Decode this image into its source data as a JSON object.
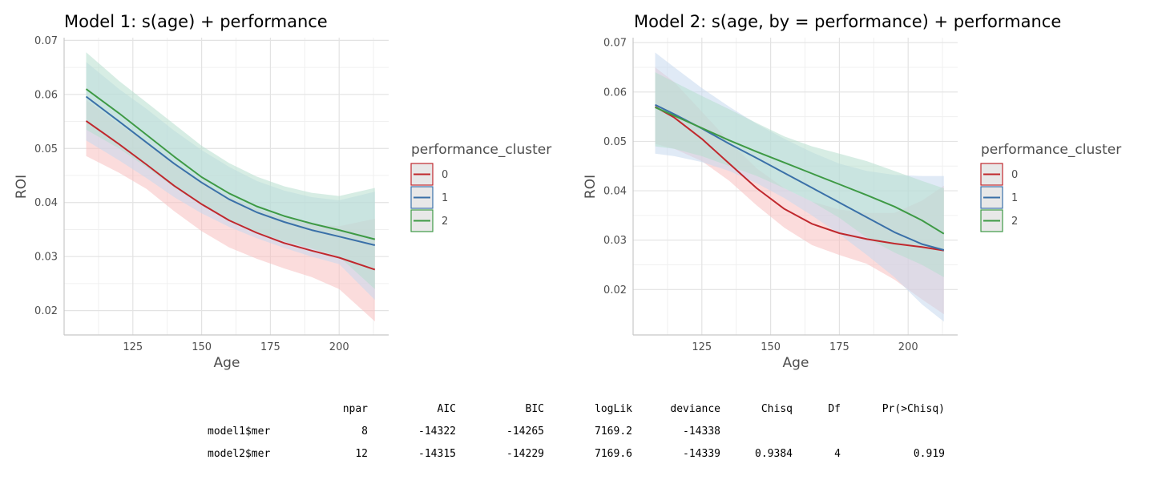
{
  "chart_data": [
    {
      "type": "line",
      "title": "Model 1: s(age) + performance",
      "xlabel": "Age",
      "ylabel": "ROI",
      "xlim": [
        100,
        218
      ],
      "ylim": [
        0.0155,
        0.0705
      ],
      "xticks": [
        125,
        150,
        175,
        200
      ],
      "xtick_labels": [
        "125",
        "150",
        "175",
        "200"
      ],
      "yticks": [
        0.02,
        0.03,
        0.04,
        0.05,
        0.06,
        0.07
      ],
      "ytick_labels": [
        "0.02",
        "0.03",
        "0.04",
        "0.05",
        "0.06",
        "0.07"
      ],
      "grid": true,
      "legend": {
        "title": "performance_cluster",
        "position": "right"
      },
      "series": [
        {
          "name": "0",
          "color": "#c0282d",
          "fill": "#f8c0c0",
          "x": [
            108,
            120,
            130,
            140,
            150,
            160,
            170,
            180,
            190,
            200,
            213
          ],
          "y": [
            0.0551,
            0.0508,
            0.047,
            0.0431,
            0.0397,
            0.0367,
            0.0344,
            0.0325,
            0.0311,
            0.0298,
            0.0276
          ],
          "lower": [
            0.0486,
            0.0455,
            0.0425,
            0.0384,
            0.0347,
            0.0317,
            0.0296,
            0.0278,
            0.0262,
            0.024,
            0.018
          ],
          "upper": [
            0.059,
            0.0545,
            0.051,
            0.0474,
            0.044,
            0.041,
            0.0388,
            0.0372,
            0.036,
            0.0356,
            0.037
          ]
        },
        {
          "name": "1",
          "color": "#3a70a8",
          "fill": "#c6d9ee",
          "x": [
            108,
            120,
            130,
            140,
            150,
            160,
            170,
            180,
            190,
            200,
            213
          ],
          "y": [
            0.0596,
            0.055,
            0.0511,
            0.0472,
            0.0437,
            0.0406,
            0.0382,
            0.0364,
            0.0349,
            0.0337,
            0.0321
          ],
          "lower": [
            0.0515,
            0.0478,
            0.0445,
            0.041,
            0.038,
            0.0355,
            0.0334,
            0.0316,
            0.03,
            0.0286,
            0.022
          ],
          "upper": [
            0.066,
            0.061,
            0.0573,
            0.0533,
            0.0497,
            0.0466,
            0.044,
            0.0422,
            0.041,
            0.0404,
            0.042
          ]
        },
        {
          "name": "2",
          "color": "#3e9a45",
          "fill": "#b7decd",
          "x": [
            108,
            120,
            130,
            140,
            150,
            160,
            170,
            180,
            190,
            200,
            213
          ],
          "y": [
            0.061,
            0.0565,
            0.0525,
            0.0485,
            0.0447,
            0.0417,
            0.0393,
            0.0375,
            0.0361,
            0.0349,
            0.0332
          ],
          "lower": [
            0.0535,
            0.05,
            0.0465,
            0.0428,
            0.0395,
            0.0367,
            0.0345,
            0.0328,
            0.0315,
            0.03,
            0.024
          ],
          "upper": [
            0.0678,
            0.0625,
            0.0585,
            0.0545,
            0.0505,
            0.0473,
            0.0448,
            0.043,
            0.0418,
            0.0412,
            0.0427
          ]
        }
      ]
    },
    {
      "type": "line",
      "title": "Model 2: s(age, by = performance) + performance",
      "xlabel": "Age",
      "ylabel": "ROI",
      "xlim": [
        100,
        218
      ],
      "ylim": [
        0.0108,
        0.071
      ],
      "xticks": [
        125,
        150,
        175,
        200
      ],
      "xtick_labels": [
        "125",
        "150",
        "175",
        "200"
      ],
      "yticks": [
        0.02,
        0.03,
        0.04,
        0.05,
        0.06,
        0.07
      ],
      "ytick_labels": [
        "0.02",
        "0.03",
        "0.04",
        "0.05",
        "0.06",
        "0.07"
      ],
      "grid": true,
      "legend": {
        "title": "performance_cluster",
        "position": "right"
      },
      "series": [
        {
          "name": "0",
          "color": "#c0282d",
          "fill": "#f8c0c0",
          "x": [
            108,
            115,
            125,
            135,
            145,
            155,
            165,
            175,
            185,
            195,
            205,
            213
          ],
          "y": [
            0.057,
            0.0548,
            0.0505,
            0.0455,
            0.0405,
            0.0363,
            0.0333,
            0.0314,
            0.0302,
            0.0293,
            0.0286,
            0.0279
          ],
          "lower": [
            0.0495,
            0.0485,
            0.046,
            0.042,
            0.037,
            0.0325,
            0.029,
            0.027,
            0.0252,
            0.022,
            0.018,
            0.015
          ],
          "upper": [
            0.065,
            0.062,
            0.056,
            0.05,
            0.0445,
            0.0405,
            0.0378,
            0.0362,
            0.0355,
            0.0355,
            0.038,
            0.041
          ]
        },
        {
          "name": "1",
          "color": "#3a70a8",
          "fill": "#c6d9ee",
          "x": [
            108,
            115,
            125,
            135,
            145,
            155,
            165,
            175,
            185,
            195,
            205,
            213
          ],
          "y": [
            0.0574,
            0.0555,
            0.0526,
            0.0495,
            0.0466,
            0.0436,
            0.0406,
            0.0376,
            0.0346,
            0.0316,
            0.0292,
            0.028
          ],
          "lower": [
            0.0475,
            0.047,
            0.0458,
            0.044,
            0.0415,
            0.0385,
            0.035,
            0.0312,
            0.027,
            0.0225,
            0.017,
            0.0135
          ],
          "upper": [
            0.068,
            0.065,
            0.0608,
            0.057,
            0.0535,
            0.0505,
            0.0478,
            0.0455,
            0.044,
            0.0432,
            0.043,
            0.043
          ]
        },
        {
          "name": "2",
          "color": "#3e9a45",
          "fill": "#b7decd",
          "x": [
            108,
            115,
            125,
            135,
            145,
            155,
            165,
            175,
            185,
            195,
            205,
            213
          ],
          "y": [
            0.0569,
            0.0552,
            0.0527,
            0.0502,
            0.0479,
            0.0457,
            0.0435,
            0.0413,
            0.0391,
            0.0368,
            0.034,
            0.0313
          ],
          "lower": [
            0.049,
            0.0485,
            0.047,
            0.045,
            0.043,
            0.0405,
            0.0378,
            0.0345,
            0.0305,
            0.0275,
            0.025,
            0.0225
          ],
          "upper": [
            0.064,
            0.062,
            0.0592,
            0.0565,
            0.0537,
            0.051,
            0.049,
            0.0475,
            0.046,
            0.044,
            0.042,
            0.0405
          ]
        }
      ]
    }
  ],
  "anova_table": {
    "columns": [
      "npar",
      "AIC",
      "BIC",
      "logLik",
      "deviance",
      "Chisq",
      "Df",
      "Pr(>Chisq)"
    ],
    "rows": [
      {
        "label": "model1$mer",
        "values": [
          "8",
          "-14322",
          "-14265",
          "7169.2",
          "-14338",
          "",
          "",
          ""
        ]
      },
      {
        "label": "model2$mer",
        "values": [
          "12",
          "-14315",
          "-14229",
          "7169.6",
          "-14339",
          "0.9384",
          "4",
          "0.919"
        ]
      }
    ]
  }
}
